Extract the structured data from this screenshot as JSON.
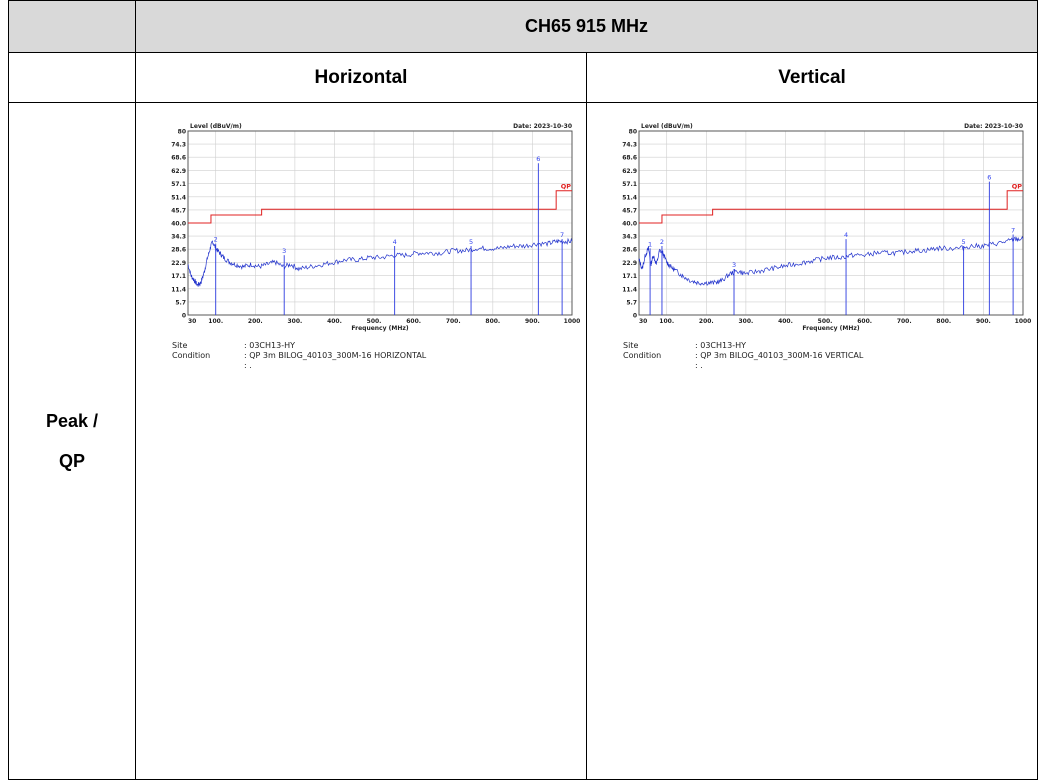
{
  "header": {
    "title": "CH65 915 MHz"
  },
  "columns": [
    "Horizontal",
    "Vertical"
  ],
  "row_label": [
    "Peak /",
    "QP"
  ],
  "chart_data": [
    {
      "type": "line",
      "ylabel": "Level (dBuV/m)",
      "xlabel": "Frequency (MHz)",
      "date": "Date: 2023-10-30",
      "limit_label": "QP",
      "xlim": [
        30,
        1000
      ],
      "ylim": [
        0,
        80
      ],
      "x_ticks": [
        "30",
        "100.",
        "200.",
        "300.",
        "400.",
        "500.",
        "600.",
        "700.",
        "800.",
        "900.",
        "1000"
      ],
      "x_tick_values": [
        30,
        100,
        200,
        300,
        400,
        500,
        600,
        700,
        800,
        900,
        1000
      ],
      "y_ticks": [
        "0",
        "5.7",
        "11.4",
        "17.1",
        "22.9",
        "28.6",
        "34.3",
        "40.0",
        "45.7",
        "51.4",
        "57.1",
        "62.9",
        "68.6",
        "74.3",
        "80"
      ],
      "y_tick_values": [
        0,
        5.7,
        11.4,
        17.1,
        22.9,
        28.6,
        34.3,
        40.0,
        45.7,
        51.4,
        57.1,
        62.9,
        68.6,
        74.3,
        80
      ],
      "limit_line": [
        [
          30,
          40
        ],
        [
          88,
          40
        ],
        [
          88,
          43.5
        ],
        [
          216,
          43.5
        ],
        [
          216,
          46
        ],
        [
          960,
          46
        ],
        [
          960,
          54
        ],
        [
          1000,
          54
        ]
      ],
      "trace": [
        [
          30,
          22
        ],
        [
          38,
          17
        ],
        [
          46,
          15
        ],
        [
          54,
          13
        ],
        [
          62,
          14
        ],
        [
          70,
          18
        ],
        [
          78,
          24
        ],
        [
          86,
          29
        ],
        [
          92,
          32
        ],
        [
          100,
          29
        ],
        [
          110,
          27
        ],
        [
          120,
          25
        ],
        [
          135,
          23
        ],
        [
          150,
          22
        ],
        [
          170,
          21
        ],
        [
          190,
          22
        ],
        [
          210,
          21
        ],
        [
          230,
          22
        ],
        [
          250,
          23
        ],
        [
          270,
          21
        ],
        [
          290,
          22
        ],
        [
          310,
          20
        ],
        [
          340,
          21
        ],
        [
          370,
          22
        ],
        [
          400,
          23
        ],
        [
          430,
          24
        ],
        [
          460,
          24
        ],
        [
          490,
          25
        ],
        [
          520,
          25
        ],
        [
          550,
          26
        ],
        [
          580,
          26
        ],
        [
          610,
          27
        ],
        [
          640,
          27
        ],
        [
          670,
          27
        ],
        [
          700,
          28
        ],
        [
          730,
          28
        ],
        [
          760,
          29
        ],
        [
          790,
          29
        ],
        [
          820,
          29
        ],
        [
          850,
          30
        ],
        [
          880,
          30
        ],
        [
          910,
          31
        ],
        [
          940,
          31
        ],
        [
          960,
          32
        ],
        [
          980,
          32
        ],
        [
          1000,
          32
        ]
      ],
      "markers": [
        {
          "label": "2",
          "x": 100,
          "y": 31
        },
        {
          "label": "3",
          "x": 273,
          "y": 26
        },
        {
          "label": "4",
          "x": 552,
          "y": 30
        },
        {
          "label": "5",
          "x": 745,
          "y": 30
        },
        {
          "label": "6",
          "x": 915,
          "y": 66
        },
        {
          "label": "7",
          "x": 975,
          "y": 33
        }
      ],
      "site_label": "Site",
      "site_value": ": 03CH13-HY",
      "condition_label": "Condition",
      "condition_value": ": QP 3m BILOG_40103_300M-16 HORIZONTAL",
      "extra_value": ": ."
    },
    {
      "type": "line",
      "ylabel": "Level (dBuV/m)",
      "xlabel": "Frequency (MHz)",
      "date": "Date: 2023-10-30",
      "limit_label": "QP",
      "xlim": [
        30,
        1000
      ],
      "ylim": [
        0,
        80
      ],
      "x_ticks": [
        "30",
        "100.",
        "200.",
        "300.",
        "400.",
        "500.",
        "600.",
        "700.",
        "800.",
        "900.",
        "1000"
      ],
      "x_tick_values": [
        30,
        100,
        200,
        300,
        400,
        500,
        600,
        700,
        800,
        900,
        1000
      ],
      "y_ticks": [
        "0",
        "5.7",
        "11.4",
        "17.1",
        "22.9",
        "28.6",
        "34.3",
        "40.0",
        "45.7",
        "51.4",
        "57.1",
        "62.9",
        "68.6",
        "74.3",
        "80"
      ],
      "y_tick_values": [
        0,
        5.7,
        11.4,
        17.1,
        22.9,
        28.6,
        34.3,
        40.0,
        45.7,
        51.4,
        57.1,
        62.9,
        68.6,
        74.3,
        80
      ],
      "limit_line": [
        [
          30,
          40
        ],
        [
          88,
          40
        ],
        [
          88,
          43.5
        ],
        [
          216,
          43.5
        ],
        [
          216,
          46
        ],
        [
          960,
          46
        ],
        [
          960,
          54
        ],
        [
          1000,
          54
        ]
      ],
      "trace": [
        [
          30,
          24
        ],
        [
          38,
          20
        ],
        [
          46,
          26
        ],
        [
          54,
          29
        ],
        [
          60,
          22
        ],
        [
          66,
          26
        ],
        [
          74,
          22
        ],
        [
          82,
          28
        ],
        [
          90,
          27
        ],
        [
          100,
          23
        ],
        [
          110,
          21
        ],
        [
          125,
          19
        ],
        [
          140,
          17
        ],
        [
          160,
          15
        ],
        [
          180,
          14
        ],
        [
          200,
          14
        ],
        [
          220,
          14
        ],
        [
          240,
          15
        ],
        [
          260,
          18
        ],
        [
          280,
          19
        ],
        [
          300,
          18
        ],
        [
          330,
          19
        ],
        [
          360,
          20
        ],
        [
          390,
          21
        ],
        [
          420,
          22
        ],
        [
          450,
          23
        ],
        [
          480,
          24
        ],
        [
          510,
          25
        ],
        [
          540,
          25
        ],
        [
          570,
          26
        ],
        [
          600,
          26
        ],
        [
          630,
          27
        ],
        [
          660,
          27
        ],
        [
          690,
          27
        ],
        [
          720,
          28
        ],
        [
          750,
          28
        ],
        [
          780,
          29
        ],
        [
          810,
          29
        ],
        [
          840,
          29
        ],
        [
          870,
          30
        ],
        [
          900,
          30
        ],
        [
          930,
          31
        ],
        [
          960,
          32
        ],
        [
          980,
          33
        ],
        [
          1000,
          33
        ]
      ],
      "markers": [
        {
          "label": "1",
          "x": 58,
          "y": 29
        },
        {
          "label": "2",
          "x": 88,
          "y": 30
        },
        {
          "label": "3",
          "x": 270,
          "y": 20
        },
        {
          "label": "4",
          "x": 553,
          "y": 33
        },
        {
          "label": "5",
          "x": 850,
          "y": 30
        },
        {
          "label": "6",
          "x": 915,
          "y": 58
        },
        {
          "label": "7",
          "x": 975,
          "y": 35
        }
      ],
      "site_label": "Site",
      "site_value": ": 03CH13-HY",
      "condition_label": "Condition",
      "condition_value": ": QP 3m BILOG_40103_300M-16 VERTICAL",
      "extra_value": ": ."
    }
  ]
}
